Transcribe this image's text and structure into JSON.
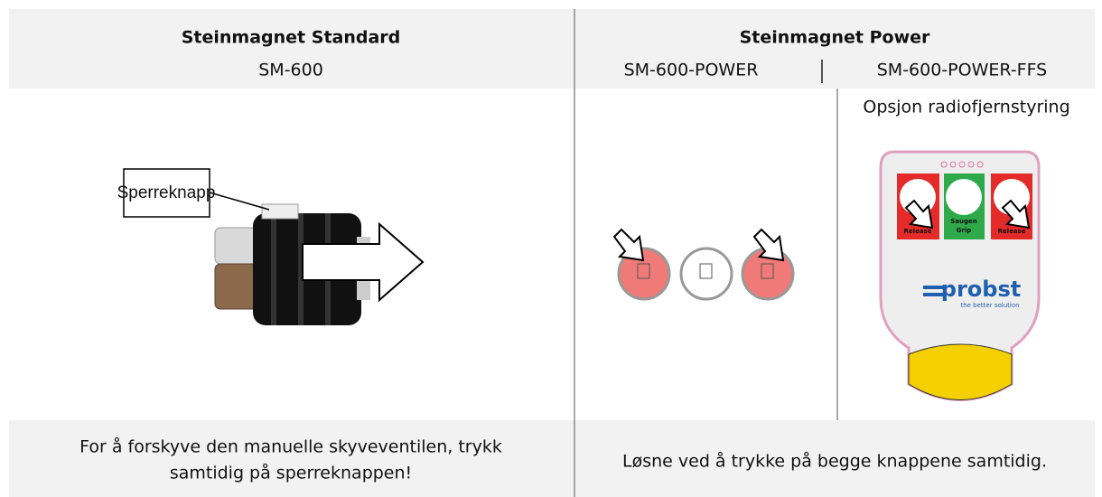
{
  "header": {
    "left": {
      "title": "Steinmagnet Standard",
      "model": "SM-600"
    },
    "right": {
      "title": "Steinmagnet Power",
      "models": [
        "SM-600-POWER",
        "SM-600-POWER-FFS"
      ]
    }
  },
  "images": {
    "left": {
      "callout": "Sperreknapp"
    },
    "right": {
      "option": "Opsjon radiofjernstyring",
      "remote": {
        "buttons": [
          [
            "Release"
          ],
          [
            "Saugen",
            "Grip"
          ],
          [
            "Release"
          ]
        ],
        "brand": "probst",
        "tagline": "the better solution"
      }
    }
  },
  "footer": {
    "left": [
      "For å forskyve den manuelle skyveventilen, trykk",
      "samtidig på sperreknappen!"
    ],
    "right": "Løsne ved å trykke på begge knappene samtidig."
  }
}
